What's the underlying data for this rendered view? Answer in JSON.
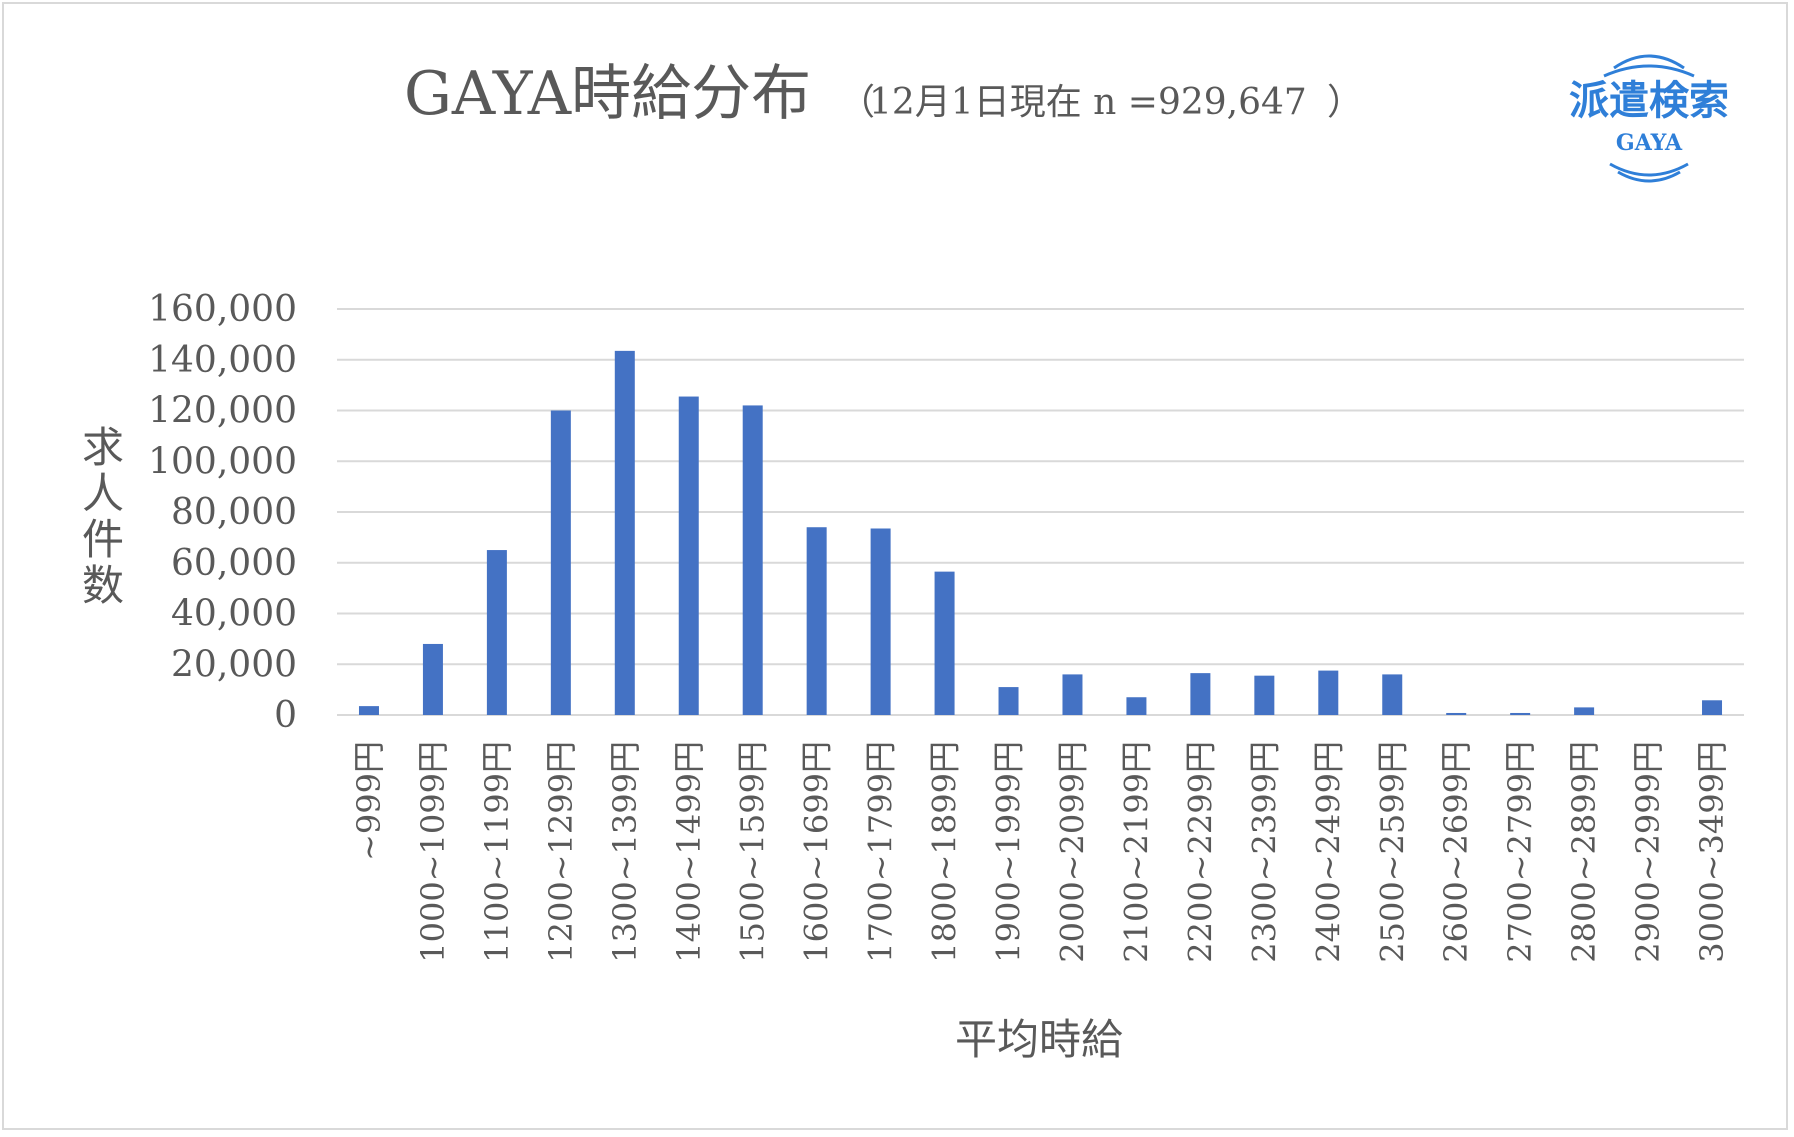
{
  "title": "GAYA時給分布",
  "subtitle_open": "（",
  "subtitle": "12月1日現在 n =929,647",
  "subtitle_close": "）",
  "logo": {
    "text": "派遣検索",
    "sub": "GAYA"
  },
  "colors": {
    "bar": "#4472c4",
    "grid": "#d9d9d9",
    "text": "#595959",
    "logo": "#2f7fd8"
  },
  "chart_data": {
    "type": "bar",
    "title": "GAYA時給分布",
    "subtitle": "12月1日現在 n =929,647",
    "xlabel": "平均時給",
    "ylabel": "求人件数",
    "ylim": [
      0,
      160000
    ],
    "yticks": [
      0,
      20000,
      40000,
      60000,
      80000,
      100000,
      120000,
      140000,
      160000
    ],
    "ytick_labels": [
      "0",
      "20,000",
      "40,000",
      "60,000",
      "80,000",
      "100,000",
      "120,000",
      "140,000",
      "160,000"
    ],
    "grid": true,
    "legend": "none",
    "categories": [
      "~999円",
      "1000~1099円",
      "1100~1199円",
      "1200~1299円",
      "1300~1399円",
      "1400~1499円",
      "1500~1599円",
      "1600~1699円",
      "1700~1799円",
      "1800~1899円",
      "1900~1999円",
      "2000~2099円",
      "2100~2199円",
      "2200~2299円",
      "2300~2399円",
      "2400~2499円",
      "2500~2599円",
      "2600~2699円",
      "2700~2799円",
      "2800~2899円",
      "2900~2999円",
      "3000~3499円"
    ],
    "values": [
      3500,
      28000,
      65000,
      120000,
      143500,
      125500,
      122000,
      74000,
      73500,
      56500,
      11000,
      16000,
      7000,
      16500,
      15500,
      17500,
      16000,
      800,
      800,
      3000,
      0,
      5800
    ]
  }
}
